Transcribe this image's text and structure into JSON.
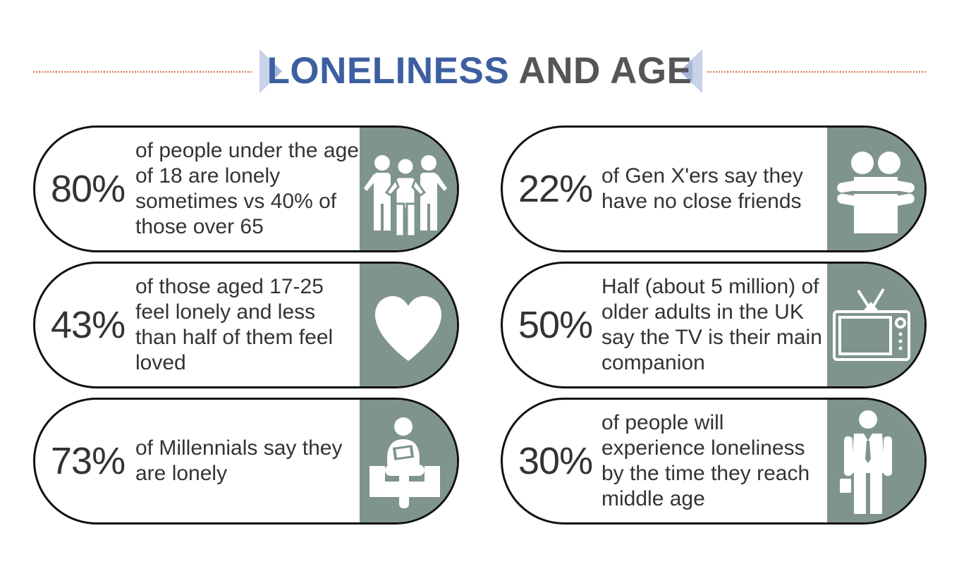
{
  "header": {
    "title_part1": "LONELINESS",
    "title_part2": "AND AGE",
    "accent_color": "#3d5fa1",
    "rule_color": "#d9694f"
  },
  "panel_color": "#7f948d",
  "cards": [
    {
      "percent": "80%",
      "text": "of people under the age of 18 are lonely sometimes vs 40% of those over 65",
      "icon": "group-people-icon"
    },
    {
      "percent": "22%",
      "text": "of Gen X'ers say they have no close friends",
      "icon": "hug-icon"
    },
    {
      "percent": "43%",
      "text": "of those aged 17-25 feel lonely and less than half of them feel loved",
      "icon": "heart-icon"
    },
    {
      "percent": "50%",
      "text": "Half (about 5 million) of older adults in the UK say the TV is their main companion",
      "icon": "tv-icon"
    },
    {
      "percent": "73%",
      "text": "of Millennials say they are lonely",
      "icon": "person-reading-icon"
    },
    {
      "percent": "30%",
      "text": "of people will experience loneliness by the time they reach middle age",
      "icon": "businessman-icon"
    }
  ]
}
